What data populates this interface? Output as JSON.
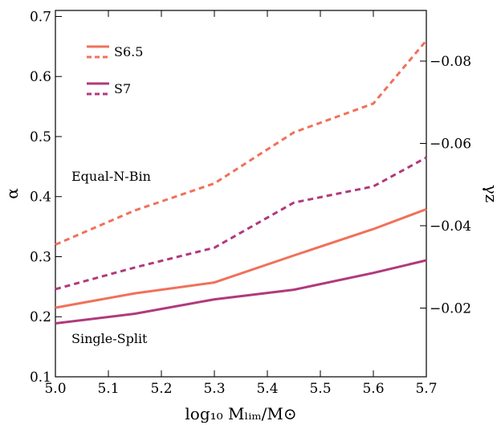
{
  "chart_data": {
    "type": "line",
    "xlabel": "log₁₀ Mₗᵢₘ/M⊙",
    "ylabel": "α",
    "y2label": "γz",
    "xlim": [
      5.0,
      5.7
    ],
    "ylim": [
      0.1,
      0.71
    ],
    "y2lim": [
      -0.0033,
      -0.0923
    ],
    "xticks": [
      "5.0",
      "5.1",
      "5.2",
      "5.3",
      "5.4",
      "5.5",
      "5.6",
      "5.7"
    ],
    "yticks": [
      "0.1",
      "0.2",
      "0.3",
      "0.4",
      "0.5",
      "0.6",
      "0.7"
    ],
    "y2ticks": [
      "−0.02",
      "−0.04",
      "−0.06",
      "−0.08"
    ],
    "x": [
      5.0,
      5.15,
      5.3,
      5.45,
      5.6,
      5.7
    ],
    "series": [
      {
        "name": "S6.5",
        "style": "solid",
        "color": "#f0715a",
        "values": [
          0.215,
          0.239,
          0.257,
          0.302,
          0.346,
          0.379
        ]
      },
      {
        "name": "S6.5",
        "style": "dashed",
        "color": "#f0715a",
        "values": [
          0.32,
          0.377,
          0.422,
          0.507,
          0.555,
          0.66
        ]
      },
      {
        "name": "S7",
        "style": "solid",
        "color": "#b03a7c",
        "values": [
          0.189,
          0.205,
          0.229,
          0.245,
          0.273,
          0.294
        ]
      },
      {
        "name": "S7",
        "style": "dashed",
        "color": "#b03a7c",
        "values": [
          0.246,
          0.282,
          0.315,
          0.39,
          0.417,
          0.465
        ]
      }
    ],
    "legend": [
      {
        "label": "S6.5",
        "color": "#f0715a"
      },
      {
        "label": "S7",
        "color": "#b03a7c"
      }
    ],
    "annotations": {
      "equal_n_bin": "Equal-N-Bin",
      "single_split": "Single-Split"
    },
    "legend_position": "top-left",
    "grid": false
  }
}
